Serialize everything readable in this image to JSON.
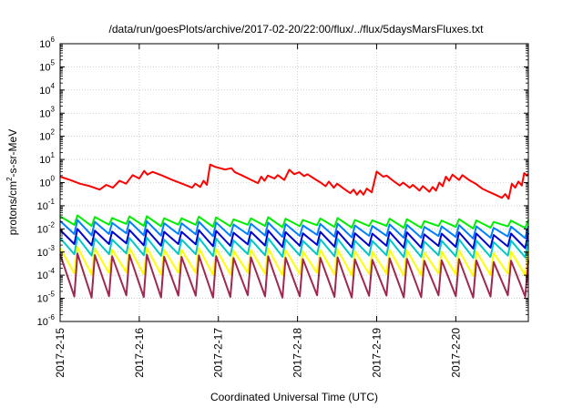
{
  "chart_data": {
    "type": "line",
    "title": "/data/run/goesPlots/archive/2017-02-20/22:00/flux/../flux/5daysMarsFluxes.txt",
    "xlabel": "Coordinated Universal Time (UTC)",
    "ylabel_parts": {
      "pre": "protons/cm",
      "sup": "2",
      "post": "-s-sr-MeV"
    },
    "y_scale": "log",
    "ylim": [
      1e-06,
      1000000.0
    ],
    "y_ticks": [
      {
        "value": 1e-06,
        "base": "10",
        "exp": "-6"
      },
      {
        "value": 1e-05,
        "base": "10",
        "exp": "-5"
      },
      {
        "value": 0.0001,
        "base": "10",
        "exp": "-4"
      },
      {
        "value": 0.001,
        "base": "10",
        "exp": "-3"
      },
      {
        "value": 0.01,
        "base": "10",
        "exp": "-2"
      },
      {
        "value": 0.1,
        "base": "10",
        "exp": "-1"
      },
      {
        "value": 1,
        "base": "10",
        "exp": "0"
      },
      {
        "value": 10,
        "base": "10",
        "exp": "1"
      },
      {
        "value": 100,
        "base": "10",
        "exp": "2"
      },
      {
        "value": 1000,
        "base": "10",
        "exp": "3"
      },
      {
        "value": 10000,
        "base": "10",
        "exp": "4"
      },
      {
        "value": 100000,
        "base": "10",
        "exp": "5"
      },
      {
        "value": 1000000,
        "base": "10",
        "exp": "6"
      }
    ],
    "xlim": [
      "2017-02-15 00:00",
      "2017-02-20 22:00"
    ],
    "x_ticks": [
      {
        "value": "2017-02-15 00:00",
        "label": "2017-2-15"
      },
      {
        "value": "2017-02-16 00:00",
        "label": "2017-2-16"
      },
      {
        "value": "2017-02-17 00:00",
        "label": "2017-2-17"
      },
      {
        "value": "2017-02-18 00:00",
        "label": "2017-2-18"
      },
      {
        "value": "2017-02-19 00:00",
        "label": "2017-2-19"
      },
      {
        "value": "2017-02-20 00:00",
        "label": "2017-2-20"
      }
    ],
    "grid": true,
    "legend": "none",
    "series": [
      {
        "color": "#ff0000",
        "points": [
          [
            "2017-02-15 00:00",
            1.8
          ],
          [
            "2017-02-15 03:00",
            1.3
          ],
          [
            "2017-02-15 06:00",
            0.9
          ],
          [
            "2017-02-15 09:00",
            0.7
          ],
          [
            "2017-02-15 12:00",
            0.5
          ],
          [
            "2017-02-15 14:00",
            0.8
          ],
          [
            "2017-02-15 16:00",
            0.6
          ],
          [
            "2017-02-15 18:00",
            1.2
          ],
          [
            "2017-02-15 20:00",
            0.9
          ],
          [
            "2017-02-15 22:00",
            2.1
          ],
          [
            "2017-02-16 00:00",
            1.5
          ],
          [
            "2017-02-16 01:30",
            3.2
          ],
          [
            "2017-02-16 02:30",
            2.2
          ],
          [
            "2017-02-16 04:00",
            2.9
          ],
          [
            "2017-02-16 07:00",
            2.0
          ],
          [
            "2017-02-16 10:00",
            1.3
          ],
          [
            "2017-02-16 13:00",
            0.9
          ],
          [
            "2017-02-16 16:00",
            0.6
          ],
          [
            "2017-02-16 17:00",
            0.9
          ],
          [
            "2017-02-16 18:30",
            0.65
          ],
          [
            "2017-02-16 19:30",
            1.2
          ],
          [
            "2017-02-16 20:30",
            0.8
          ],
          [
            "2017-02-16 21:30",
            6.0
          ],
          [
            "2017-02-16 23:00",
            4.8
          ],
          [
            "2017-02-17 02:00",
            3.7
          ],
          [
            "2017-02-17 04:00",
            4.2
          ],
          [
            "2017-02-17 05:00",
            2.8
          ],
          [
            "2017-02-17 07:00",
            2.1
          ],
          [
            "2017-02-17 10:00",
            1.3
          ],
          [
            "2017-02-17 12:00",
            0.95
          ],
          [
            "2017-02-17 13:00",
            1.8
          ],
          [
            "2017-02-17 14:00",
            1.2
          ],
          [
            "2017-02-17 15:00",
            2.0
          ],
          [
            "2017-02-17 17:00",
            1.5
          ],
          [
            "2017-02-17 18:00",
            2.1
          ],
          [
            "2017-02-17 20:00",
            1.3
          ],
          [
            "2017-02-17 21:30",
            3.6
          ],
          [
            "2017-02-17 23:00",
            2.3
          ],
          [
            "2017-02-18 00:30",
            2.8
          ],
          [
            "2017-02-18 02:00",
            1.9
          ],
          [
            "2017-02-18 03:00",
            2.3
          ],
          [
            "2017-02-18 05:00",
            1.5
          ],
          [
            "2017-02-18 07:00",
            1.0
          ],
          [
            "2017-02-18 08:30",
            0.7
          ],
          [
            "2017-02-18 09:30",
            1.1
          ],
          [
            "2017-02-18 11:00",
            0.6
          ],
          [
            "2017-02-18 12:00",
            0.9
          ],
          [
            "2017-02-18 14:00",
            0.55
          ],
          [
            "2017-02-18 16:00",
            0.35
          ],
          [
            "2017-02-18 17:00",
            0.5
          ],
          [
            "2017-02-18 18:00",
            0.3
          ],
          [
            "2017-02-18 19:00",
            0.45
          ],
          [
            "2017-02-18 20:00",
            0.3
          ],
          [
            "2017-02-18 21:00",
            0.55
          ],
          [
            "2017-02-18 22:30",
            0.38
          ],
          [
            "2017-02-19 00:00",
            3.0
          ],
          [
            "2017-02-19 02:00",
            1.8
          ],
          [
            "2017-02-19 03:00",
            2.0
          ],
          [
            "2017-02-19 05:00",
            1.2
          ],
          [
            "2017-02-19 07:00",
            0.75
          ],
          [
            "2017-02-19 08:00",
            1.0
          ],
          [
            "2017-02-19 10:00",
            0.6
          ],
          [
            "2017-02-19 11:00",
            0.8
          ],
          [
            "2017-02-19 13:00",
            0.45
          ],
          [
            "2017-02-19 14:00",
            0.7
          ],
          [
            "2017-02-19 16:00",
            0.4
          ],
          [
            "2017-02-19 17:00",
            0.65
          ],
          [
            "2017-02-19 18:00",
            0.45
          ],
          [
            "2017-02-19 19:00",
            1.0
          ],
          [
            "2017-02-19 20:00",
            0.7
          ],
          [
            "2017-02-19 21:00",
            1.8
          ],
          [
            "2017-02-19 22:00",
            1.2
          ],
          [
            "2017-02-19 23:00",
            2.2
          ],
          [
            "2017-02-20 01:00",
            1.3
          ],
          [
            "2017-02-20 02:00",
            2.1
          ],
          [
            "2017-02-20 04:00",
            1.3
          ],
          [
            "2017-02-20 06:00",
            0.9
          ],
          [
            "2017-02-20 08:00",
            0.55
          ],
          [
            "2017-02-20 10:00",
            0.4
          ],
          [
            "2017-02-20 12:00",
            0.3
          ],
          [
            "2017-02-20 14:00",
            0.22
          ],
          [
            "2017-02-20 15:00",
            0.32
          ],
          [
            "2017-02-20 16:00",
            0.2
          ],
          [
            "2017-02-20 17:00",
            0.9
          ],
          [
            "2017-02-20 18:00",
            0.6
          ],
          [
            "2017-02-20 19:00",
            1.1
          ],
          [
            "2017-02-20 20:00",
            0.75
          ],
          [
            "2017-02-20 20:45",
            2.6
          ],
          [
            "2017-02-20 21:30",
            2.0
          ],
          [
            "2017-02-20 22:00",
            2.4
          ]
        ]
      },
      {
        "color": "#00ee00",
        "oscillation": {
          "cycles": 27,
          "max": 0.035,
          "min": 0.015,
          "end_max": 0.022,
          "end_min": 0.011
        }
      },
      {
        "color": "#0080ff",
        "oscillation": {
          "cycles": 27,
          "max": 0.022,
          "min": 0.006,
          "end_max": 0.012,
          "end_min": 0.004
        }
      },
      {
        "color": "#0000cc",
        "oscillation": {
          "cycles": 27,
          "max": 0.009,
          "min": 0.0022,
          "end_max": 0.006,
          "end_min": 0.0015
        }
      },
      {
        "color": "#00c8c8",
        "oscillation": {
          "cycles": 27,
          "max": 0.004,
          "min": 0.0008,
          "end_max": 0.003,
          "end_min": 0.0006
        }
      },
      {
        "color": "#ffff00",
        "oscillation": {
          "cycles": 27,
          "max": 0.0015,
          "min": 0.00012,
          "end_max": 0.001,
          "end_min": 0.0001
        }
      },
      {
        "color": "#a02850",
        "oscillation": {
          "cycles": 27,
          "max": 0.0008,
          "min": 1.2e-05,
          "end_max": 0.0004,
          "end_min": 1.2e-05
        }
      }
    ]
  }
}
